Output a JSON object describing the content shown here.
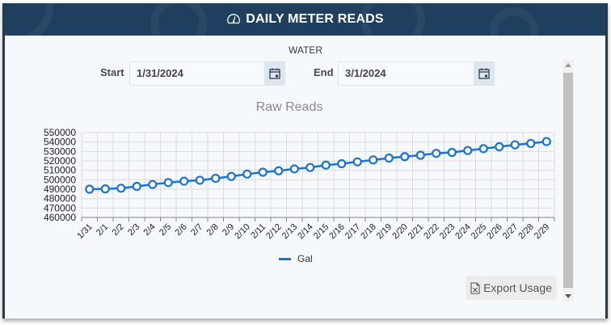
{
  "header": {
    "title": "DAILY METER READS",
    "icon": "speedometer-icon"
  },
  "utility": "WATER",
  "filters": {
    "start_label": "Start",
    "start_value": "1/31/2024",
    "end_label": "End",
    "end_value": "3/1/2024",
    "calendar_icon": "calendar-icon"
  },
  "export_button": {
    "label": "Export Usage",
    "icon": "excel-file-icon"
  },
  "colors": {
    "header_bg": "#1e3f5e",
    "series": "#1a73d9",
    "panel_bg": "#f5f9fc"
  },
  "chart_data": {
    "type": "line",
    "title": "Raw Reads",
    "xlabel": "",
    "ylabel": "",
    "ylim": [
      460000,
      550000
    ],
    "yticks": [
      550000,
      540000,
      530000,
      520000,
      510000,
      500000,
      490000,
      480000,
      470000,
      460000
    ],
    "grid": true,
    "legend_position": "bottom",
    "categories": [
      "1/31",
      "2/1",
      "2/2",
      "2/3",
      "2/4",
      "2/5",
      "2/6",
      "2/7",
      "2/8",
      "2/9",
      "2/10",
      "2/11",
      "2/12",
      "2/13",
      "2/14",
      "2/15",
      "2/16",
      "2/17",
      "2/18",
      "2/19",
      "2/20",
      "2/21",
      "2/22",
      "2/23",
      "2/24",
      "2/25",
      "2/26",
      "2/27",
      "2/28",
      "2/29"
    ],
    "series": [
      {
        "name": "Gal",
        "values": [
          490000,
          490300,
          491000,
          493000,
          495000,
          497000,
          498500,
          499500,
          501500,
          503500,
          506000,
          508000,
          509500,
          511500,
          513000,
          515500,
          517000,
          519000,
          521000,
          523000,
          524500,
          526000,
          528000,
          529000,
          531000,
          533000,
          535000,
          537000,
          538500,
          540500
        ]
      }
    ]
  }
}
